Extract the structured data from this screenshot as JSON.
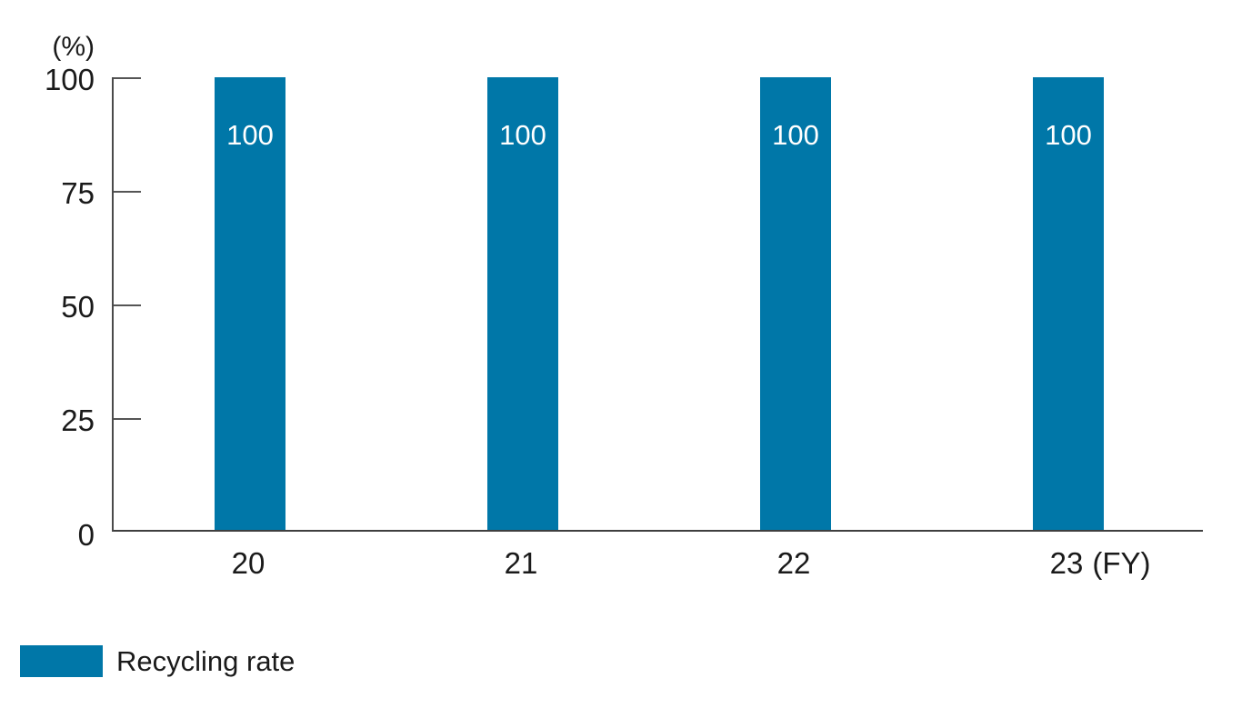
{
  "chart_data": {
    "type": "bar",
    "title": "",
    "unit_label": "(%)",
    "categories": [
      "20",
      "21",
      "22",
      "23"
    ],
    "x_axis_suffix": "(FY)",
    "values": [
      100,
      100,
      100,
      100
    ],
    "bar_value_labels": [
      "100",
      "100",
      "100",
      "100"
    ],
    "series": [
      {
        "name": "Recycling rate",
        "values": [
          100,
          100,
          100,
          100
        ]
      }
    ],
    "yticks": [
      "100",
      "75",
      "50",
      "25",
      "0"
    ],
    "ylim": [
      0,
      100
    ],
    "grid": false,
    "legend_position": "bottom-left"
  },
  "legend": {
    "items": [
      {
        "label": "Recycling rate",
        "color": "#0077a8"
      }
    ]
  },
  "colors": {
    "bar": "#0077a8",
    "axis": "#4a4a4a",
    "text": "#1a1a1a",
    "bar_value_text": "#ffffff",
    "background": "#ffffff"
  }
}
